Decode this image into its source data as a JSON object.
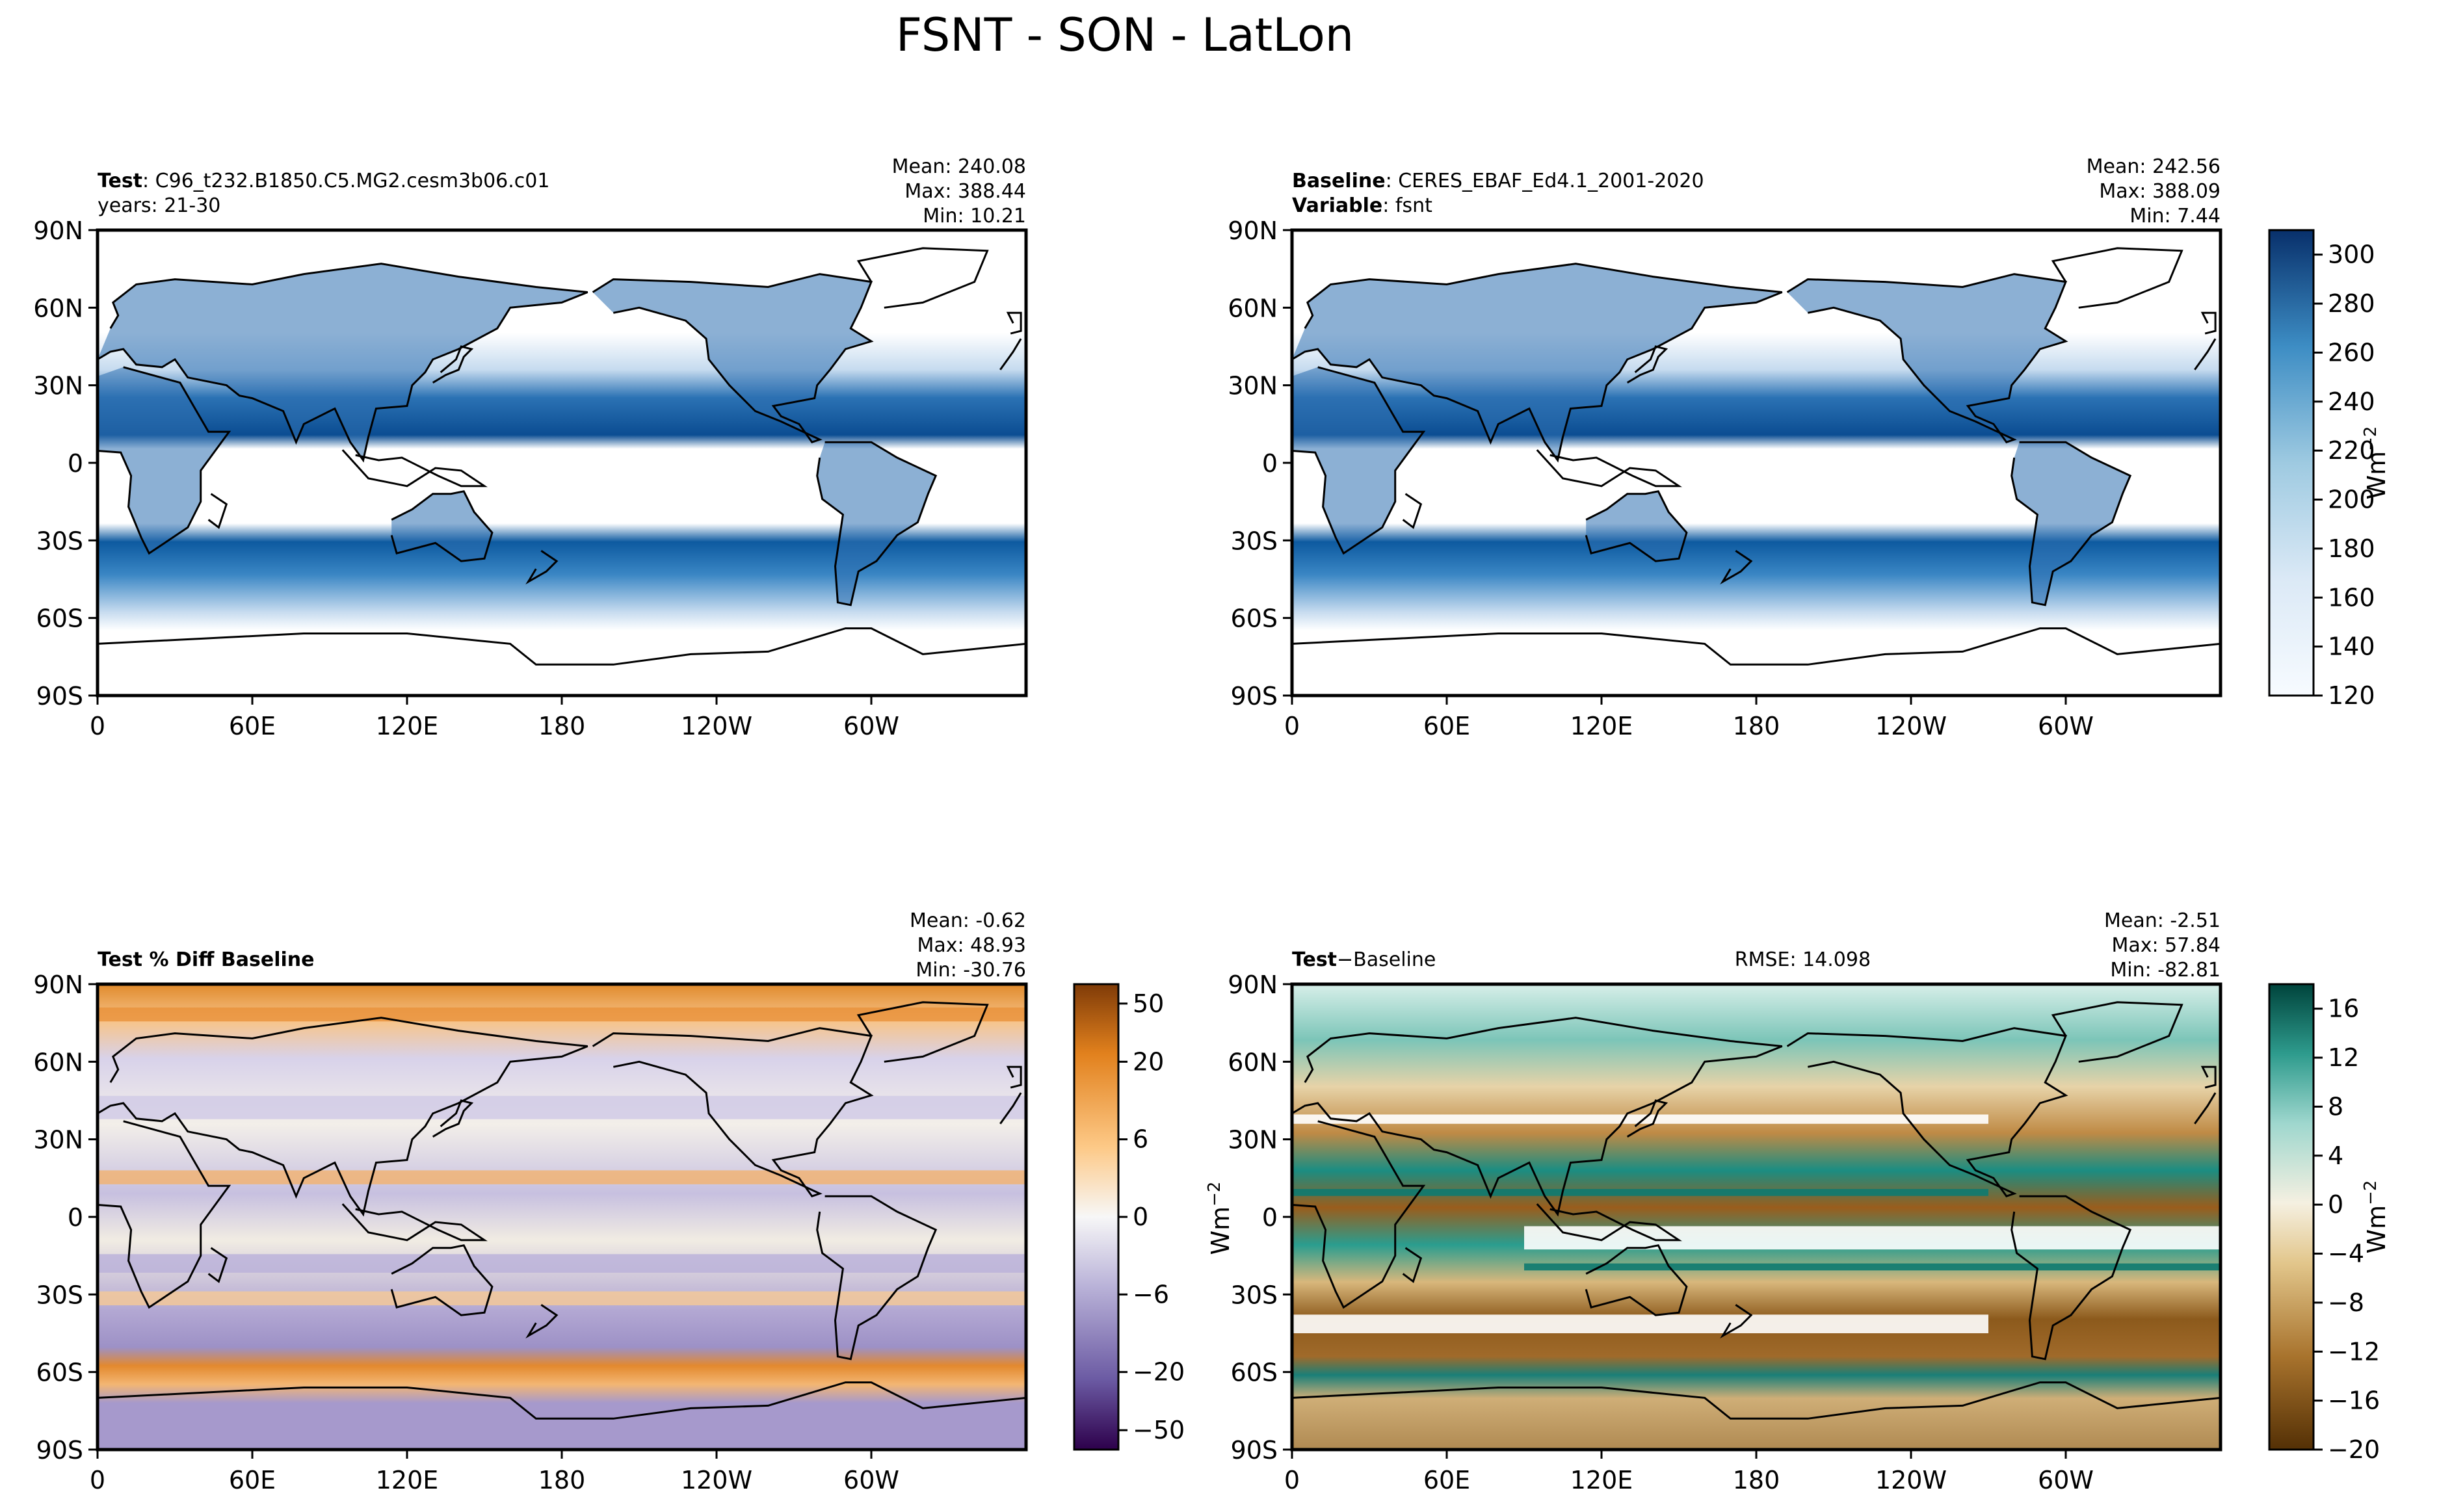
{
  "figure": {
    "title": "FSNT - SON - LatLon"
  },
  "chart_data": [
    {
      "type": "heatmap",
      "panel": "test",
      "left_title_bold": "Test",
      "left_title_rest": ": C96_t232.B1850.C5.MG2.cesm3b06.c01",
      "left_subtitle": "years: 21-30",
      "stats": [
        "Mean: 240.08",
        "Max: 388.44",
        "Min: 10.21"
      ],
      "xticks": [
        "0",
        "60E",
        "120E",
        "180",
        "120W",
        "60W"
      ],
      "yticks": [
        "90N",
        "60N",
        "30N",
        "0",
        "30S",
        "60S",
        "90S"
      ],
      "xlim": [
        0,
        360
      ],
      "ylim": [
        -90,
        90
      ],
      "values_range": [
        120,
        300
      ],
      "colormap": "blues",
      "white_below": 120
    },
    {
      "type": "heatmap",
      "panel": "baseline",
      "left_title_bold": "Baseline",
      "left_title_rest": ": CERES_EBAF_Ed4.1_2001-2020",
      "left_subtitle_bold": "Variable",
      "left_subtitle_rest": ": fsnt",
      "stats": [
        "Mean: 242.56",
        "Max: 388.09",
        "Min:  7.44"
      ],
      "xticks": [
        "0",
        "60E",
        "120E",
        "180",
        "120W",
        "60W"
      ],
      "yticks": [
        "90N",
        "60N",
        "30N",
        "0",
        "30S",
        "60S",
        "90S"
      ],
      "xlim": [
        0,
        360
      ],
      "ylim": [
        -90,
        90
      ],
      "colorbar": {
        "ticks": [
          "300",
          "280",
          "260",
          "240",
          "220",
          "200",
          "180",
          "160",
          "140",
          "120"
        ],
        "range": [
          120,
          310
        ],
        "unit": "Wm",
        "unit_sup": "−2"
      }
    },
    {
      "type": "heatmap",
      "panel": "percent-diff",
      "left_title_bold": "Test % Diff Baseline",
      "stats": [
        "Mean: -0.62",
        "Max: 48.93",
        "Min: -30.76"
      ],
      "xticks": [
        "0",
        "60E",
        "120E",
        "180",
        "120W",
        "60W"
      ],
      "yticks": [
        "90N",
        "60N",
        "30N",
        "0",
        "30S",
        "60S",
        "90S"
      ],
      "xlim": [
        0,
        360
      ],
      "ylim": [
        -90,
        90
      ],
      "colorbar": {
        "ticks": [
          "50",
          "20",
          "6",
          "0",
          "−6",
          "−20",
          "−50"
        ],
        "levels": [
          -60,
          -50,
          -40,
          -30,
          -20,
          -15,
          -10,
          -8,
          -6,
          -4,
          -2,
          -1,
          0,
          1,
          2,
          4,
          6,
          8,
          10,
          15,
          20,
          30,
          40,
          50,
          60
        ],
        "colormap": "purple-orange"
      }
    },
    {
      "type": "heatmap",
      "panel": "difference",
      "left_title_bold": "Test",
      "left_title_rest": "−Baseline",
      "center_title": "RMSE: 14.098",
      "stats": [
        "Mean: -2.51",
        "Max: 57.84",
        "Min: -82.81"
      ],
      "xticks": [
        "0",
        "60E",
        "120E",
        "180",
        "120W",
        "60W"
      ],
      "yticks": [
        "90N",
        "60N",
        "30N",
        "0",
        "30S",
        "60S",
        "90S"
      ],
      "xlim": [
        0,
        360
      ],
      "ylim": [
        -90,
        90
      ],
      "colorbar": {
        "ticks": [
          "16",
          "12",
          "8",
          "4",
          "0",
          "−4",
          "−8",
          "−12",
          "−16",
          "−20"
        ],
        "range": [
          -20,
          18
        ],
        "unit": "Wm",
        "unit_sup": "−2",
        "colormap": "brown-teal"
      }
    }
  ]
}
